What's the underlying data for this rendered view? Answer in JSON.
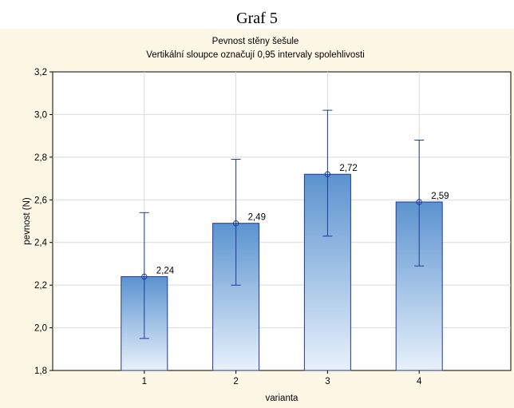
{
  "figure": {
    "heading": "Graf 5"
  },
  "chart_data": {
    "type": "bar",
    "title": "Pevnost stěny šešule",
    "subtitle": "Vertikální sloupce označují 0,95 intervaly spolehlivosti",
    "xlabel": "varianta",
    "ylabel": "pevnost (N)",
    "categories": [
      "1",
      "2",
      "3",
      "4"
    ],
    "values": [
      2.24,
      2.49,
      2.72,
      2.59
    ],
    "value_labels": [
      "2,24",
      "2,49",
      "2,72",
      "2,59"
    ],
    "ci_lower": [
      1.95,
      2.2,
      2.43,
      2.29
    ],
    "ci_upper": [
      2.54,
      2.79,
      3.02,
      2.88
    ],
    "ylim": [
      1.8,
      3.2
    ],
    "yticks": [
      1.8,
      2.0,
      2.2,
      2.4,
      2.6,
      2.8,
      3.0,
      3.2
    ],
    "ytick_labels": [
      "1,8",
      "2,0",
      "2,2",
      "2,4",
      "2,6",
      "2,8",
      "3,0",
      "3,2"
    ],
    "grid": true,
    "colors": {
      "bar_top": "#5b93cf",
      "bar_bottom": "#e8f1fb",
      "bar_edge": "#1f3a9a",
      "error_bar": "#1f3a9a",
      "grid": "#d9d9d9",
      "panel_background": "#fdf7e6"
    }
  }
}
